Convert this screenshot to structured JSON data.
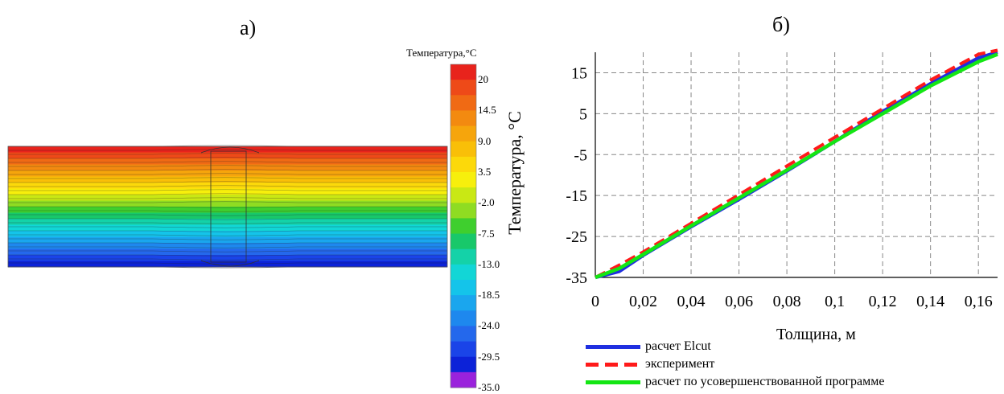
{
  "panels": {
    "left_label": "а)",
    "right_label": "б)"
  },
  "temperature_field": {
    "colorbar_title": "Температура,°С",
    "colorbar_ticks": [
      "20",
      "14.5",
      "9.0",
      "3.5",
      "-2.0",
      "-7.5",
      "-13.0",
      "-18.5",
      "-24.0",
      "-29.5",
      "-35.0"
    ],
    "colors": [
      "#e8231c",
      "#ee4a18",
      "#f06a14",
      "#f38a10",
      "#f6a50c",
      "#f9bf08",
      "#fcd90a",
      "#f7ef0c",
      "#c9e814",
      "#8fdc22",
      "#3fcf2e",
      "#18c86a",
      "#14d2a8",
      "#12d6d6",
      "#14c4ea",
      "#1aa6ee",
      "#1e88ee",
      "#2468ec",
      "#1a44e8",
      "#0c22d8",
      "#9a22dc"
    ]
  },
  "chart_data": {
    "type": "line",
    "title": "",
    "xlabel": "Толщина, м",
    "ylabel": "Температура, °С",
    "xlim": [
      0,
      0.168
    ],
    "ylim": [
      -35,
      20
    ],
    "xticks": [
      "0",
      "0,02",
      "0,04",
      "0,06",
      "0,08",
      "0,1",
      "0,12",
      "0,14",
      "0,16"
    ],
    "xtick_values": [
      0,
      0.02,
      0.04,
      0.06,
      0.08,
      0.1,
      0.12,
      0.14,
      0.16
    ],
    "yticks": [
      "15",
      "5",
      "-5",
      "-15",
      "-25",
      "-35"
    ],
    "ytick_values": [
      15,
      5,
      -5,
      -15,
      -25,
      -35
    ],
    "grid": true,
    "legend_position": "bottom",
    "series": [
      {
        "name": "расчет Elcut",
        "color": "#1f2fe0",
        "dash": false,
        "x": [
          0,
          0.01,
          0.02,
          0.04,
          0.06,
          0.08,
          0.1,
          0.12,
          0.14,
          0.16,
          0.168
        ],
        "y": [
          -35,
          -33.5,
          -29.6,
          -22.6,
          -15.9,
          -9.0,
          -1.8,
          5.5,
          12.3,
          18.6,
          20
        ]
      },
      {
        "name": "эксперимент",
        "color": "#ff1a1a",
        "dash": true,
        "x": [
          0,
          0.01,
          0.02,
          0.04,
          0.06,
          0.08,
          0.1,
          0.12,
          0.14,
          0.16,
          0.168
        ],
        "y": [
          -35,
          -32,
          -28.8,
          -21.8,
          -14.8,
          -7.8,
          -0.8,
          6.2,
          13.2,
          19.5,
          20.5
        ]
      },
      {
        "name": "расчет по усовершенствованной программе",
        "color": "#14e614",
        "dash": false,
        "x": [
          0,
          0.01,
          0.02,
          0.04,
          0.06,
          0.08,
          0.1,
          0.12,
          0.14,
          0.16,
          0.168
        ],
        "y": [
          -35,
          -32.8,
          -29.4,
          -22.4,
          -15.6,
          -8.8,
          -1.8,
          5.0,
          11.8,
          17.7,
          19.5
        ]
      }
    ]
  }
}
